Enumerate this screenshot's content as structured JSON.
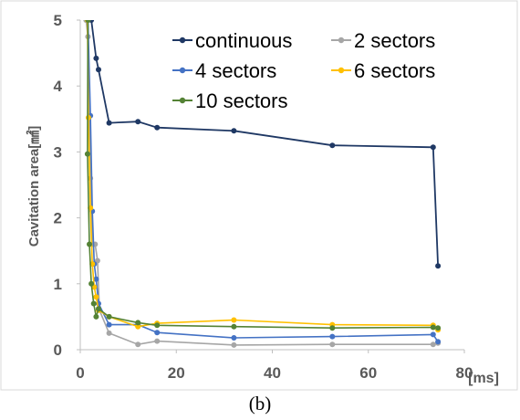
{
  "caption": "(b)",
  "chart_data": {
    "type": "line",
    "title": "",
    "xlabel": "[ms]",
    "ylabel": "Cavitation area[㎟]",
    "xlim": [
      0,
      80
    ],
    "ylim": [
      0,
      5
    ],
    "x_ticks": [
      "0",
      "20",
      "40",
      "60",
      "80"
    ],
    "y_ticks": [
      "0",
      "1",
      "2",
      "3",
      "4",
      "5"
    ],
    "grid": false,
    "legend_position": "top-right",
    "series": [
      {
        "name": "continuous",
        "color": "#1f3864",
        "points": [
          [
            2.3,
            5.0
          ],
          [
            3.3,
            4.42
          ],
          [
            3.8,
            4.25
          ],
          [
            6,
            3.44
          ],
          [
            12,
            3.46
          ],
          [
            16,
            3.37
          ],
          [
            32,
            3.32
          ],
          [
            52.5,
            3.1
          ],
          [
            73.5,
            3.07
          ],
          [
            74.5,
            1.27
          ]
        ]
      },
      {
        "name": "2 sectors",
        "color": "#a6a6a6",
        "points": [
          [
            1.2,
            5.0
          ],
          [
            1.6,
            4.75
          ],
          [
            2.1,
            2.6
          ],
          [
            2.5,
            1.6
          ],
          [
            3.1,
            1.6
          ],
          [
            3.6,
            1.35
          ],
          [
            4,
            0.6
          ],
          [
            6,
            0.25
          ],
          [
            12,
            0.08
          ],
          [
            16,
            0.13
          ],
          [
            32,
            0.07
          ],
          [
            52.5,
            0.08
          ],
          [
            73.5,
            0.08
          ],
          [
            74.5,
            0.1
          ]
        ]
      },
      {
        "name": "4 sectors",
        "color": "#4472c4",
        "points": [
          [
            1.6,
            5.0
          ],
          [
            2.1,
            3.55
          ],
          [
            2.5,
            2.1
          ],
          [
            2.9,
            1.3
          ],
          [
            3.3,
            1.07
          ],
          [
            3.8,
            0.7
          ],
          [
            6,
            0.38
          ],
          [
            12,
            0.38
          ],
          [
            16,
            0.26
          ],
          [
            32,
            0.18
          ],
          [
            52.5,
            0.2
          ],
          [
            73.5,
            0.23
          ],
          [
            74.5,
            0.12
          ]
        ]
      },
      {
        "name": "6 sectors",
        "color": "#ffc000",
        "points": [
          [
            1.5,
            5.0
          ],
          [
            1.7,
            3.52
          ],
          [
            2.1,
            2.15
          ],
          [
            2.5,
            1.3
          ],
          [
            2.9,
            0.95
          ],
          [
            3.3,
            0.8
          ],
          [
            3.8,
            0.6
          ],
          [
            6,
            0.5
          ],
          [
            12,
            0.35
          ],
          [
            16,
            0.4
          ],
          [
            32,
            0.45
          ],
          [
            52.5,
            0.38
          ],
          [
            73.5,
            0.37
          ],
          [
            74.5,
            0.3
          ]
        ]
      },
      {
        "name": "10 sectors",
        "color": "#548235",
        "points": [
          [
            1.6,
            5.0
          ],
          [
            1.5,
            2.97
          ],
          [
            1.9,
            1.6
          ],
          [
            2.3,
            1.0
          ],
          [
            2.8,
            0.7
          ],
          [
            3.3,
            0.5
          ],
          [
            3.8,
            0.62
          ],
          [
            6,
            0.5
          ],
          [
            12,
            0.41
          ],
          [
            16,
            0.37
          ],
          [
            32,
            0.35
          ],
          [
            52.5,
            0.33
          ],
          [
            73.5,
            0.34
          ],
          [
            74.5,
            0.33
          ]
        ]
      }
    ]
  }
}
